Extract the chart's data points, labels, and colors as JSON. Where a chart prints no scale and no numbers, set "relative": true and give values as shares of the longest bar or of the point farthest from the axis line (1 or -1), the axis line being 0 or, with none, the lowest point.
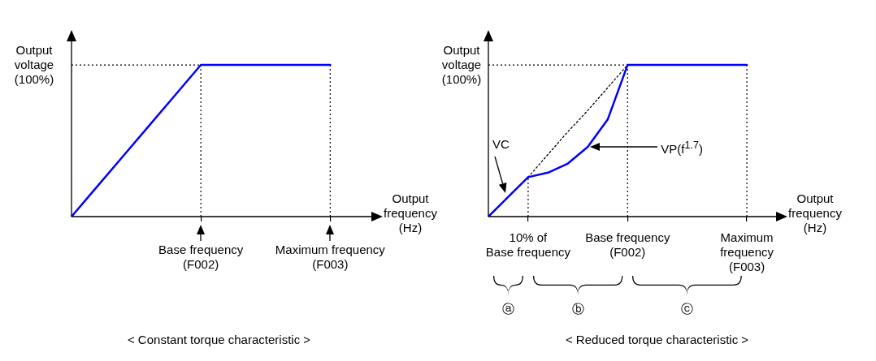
{
  "chart_data": [
    {
      "type": "line",
      "title": "< Constant torque characteristic >",
      "xlabel": "Output frequency (Hz)",
      "ylabel": "Output voltage (100%)",
      "relative": true,
      "categories": [
        null,
        null,
        null,
        null,
        null,
        "Base frequency\n(F002)",
        null,
        null,
        null,
        null,
        "Maximum frequency\n(F003)",
        null,
        null
      ],
      "series": [
        {
          "color": "#0000ff",
          "values": [
            0,
            0.2,
            0.4,
            0.6,
            0.8,
            1,
            1,
            1,
            1,
            1,
            1,
            null,
            null
          ]
        }
      ],
      "ref_lines": [
        {
          "axis": "x",
          "value": "Base frequency\n(F002)",
          "color": "#000000",
          "line_style": "dotted"
        },
        {
          "axis": "x",
          "value": "Maximum frequency\n(F003)",
          "color": "#000000",
          "line_style": "dotted"
        },
        {
          "axis": "y",
          "value": 1,
          "color": "#000000",
          "line_style": "dotted"
        }
      ]
    },
    {
      "type": "line",
      "title": "< Reduced torque characteristic >",
      "xlabel": "Output frequency (Hz)",
      "ylabel": "Output voltage (100%)",
      "relative": true,
      "categories": [
        null,
        null,
        "10% of\nBase frequency",
        null,
        null,
        null,
        null,
        "Base frequency\n(F002)",
        null,
        null,
        null,
        null,
        null,
        "Maximum\nfrequency\n(F003)",
        null,
        null
      ],
      "series": [
        {
          "name": "VC",
          "color": "#0000ff",
          "values": [
            0,
            0.13,
            0.26,
            null,
            null,
            null,
            null,
            null,
            null,
            null,
            null,
            null,
            null,
            null,
            null,
            null
          ]
        },
        {
          "name": "VP(f$^{1.7}$)",
          "color": "#0000ff",
          "values": [
            null,
            null,
            0.26,
            0.29,
            0.35,
            0.46,
            0.64,
            1,
            null,
            null,
            null,
            null,
            null,
            null,
            null,
            null
          ]
        },
        {
          "color": "#0000ff",
          "values": [
            null,
            null,
            null,
            null,
            null,
            null,
            null,
            1,
            1,
            1,
            1,
            1,
            1,
            1,
            null,
            null
          ]
        },
        {
          "color": "#000000",
          "line_style": "dotted",
          "values": [
            null,
            null,
            0.26,
            0.41,
            0.56,
            0.7,
            0.85,
            1,
            null,
            null,
            null,
            null,
            null,
            null,
            null,
            null
          ]
        }
      ],
      "ref_lines": [
        {
          "axis": "x",
          "value": "10% of\nBase frequency",
          "color": "#000000",
          "line_style": "dotted"
        },
        {
          "axis": "x",
          "value": "Base frequency\n(F002)",
          "color": "#000000",
          "line_style": "dotted"
        },
        {
          "axis": "x",
          "value": "Maximum\nfrequency\n(F003)",
          "color": "#000000",
          "line_style": "dotted"
        },
        {
          "axis": "y",
          "value": 1,
          "color": "#000000",
          "line_style": "dotted"
        }
      ],
      "annotations": [
        "ⓐ",
        "ⓑ",
        "ⓒ"
      ]
    }
  ]
}
